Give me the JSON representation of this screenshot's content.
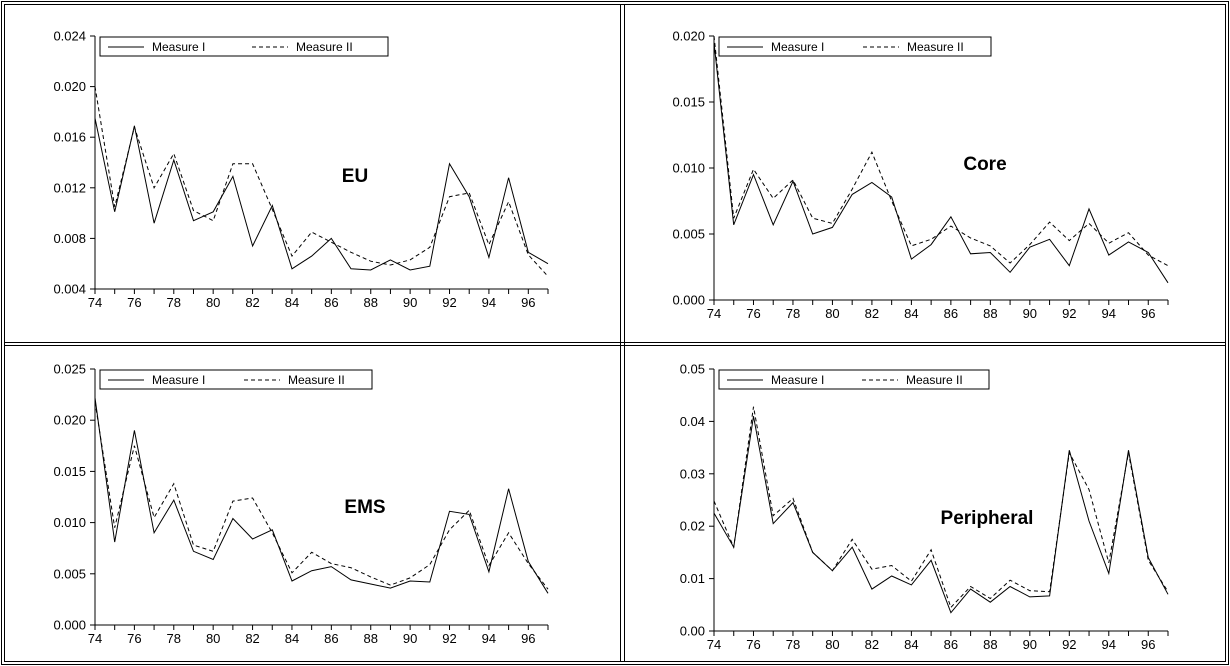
{
  "figure": {
    "colors": {
      "line": "#000000",
      "background": "#ffffff"
    }
  },
  "chart_data": [
    {
      "type": "line",
      "title": "EU",
      "x": [
        74,
        75,
        76,
        77,
        78,
        79,
        80,
        81,
        82,
        83,
        84,
        85,
        86,
        87,
        88,
        89,
        90,
        91,
        92,
        93,
        94,
        95,
        96,
        97
      ],
      "x_ticks": [
        "74",
        "76",
        "78",
        "80",
        "82",
        "84",
        "86",
        "88",
        "90",
        "92",
        "94",
        "96"
      ],
      "ylim": [
        0.004,
        0.024
      ],
      "y_ticks": [
        "0.004",
        "0.008",
        "0.012",
        "0.016",
        "0.020",
        "0.024"
      ],
      "legend": "top-left",
      "grid": false,
      "series": [
        {
          "name": "Measure I",
          "style": "solid",
          "values": [
            0.0175,
            0.0101,
            0.0169,
            0.0092,
            0.0142,
            0.0094,
            0.0101,
            0.0129,
            0.0074,
            0.0106,
            0.0056,
            0.0066,
            0.008,
            0.0056,
            0.0055,
            0.0063,
            0.0055,
            0.0058,
            0.0139,
            0.0113,
            0.0065,
            0.0128,
            0.0069,
            0.006
          ]
        },
        {
          "name": "Measure II",
          "style": "dashed",
          "values": [
            0.02,
            0.0105,
            0.0168,
            0.012,
            0.0147,
            0.0102,
            0.0094,
            0.0139,
            0.0139,
            0.0103,
            0.0066,
            0.0085,
            0.0077,
            0.0069,
            0.0062,
            0.0059,
            0.0063,
            0.0073,
            0.0113,
            0.0116,
            0.0075,
            0.0109,
            0.0067,
            0.005
          ]
        }
      ]
    },
    {
      "type": "line",
      "title": "Core",
      "x": [
        74,
        75,
        76,
        77,
        78,
        79,
        80,
        81,
        82,
        83,
        84,
        85,
        86,
        87,
        88,
        89,
        90,
        91,
        92,
        93,
        94,
        95,
        96,
        97
      ],
      "x_ticks": [
        "74",
        "76",
        "78",
        "80",
        "82",
        "84",
        "86",
        "88",
        "90",
        "92",
        "94",
        "96"
      ],
      "ylim": [
        0.0,
        0.02
      ],
      "y_ticks": [
        "0.000",
        "0.005",
        "0.010",
        "0.015",
        "0.020"
      ],
      "legend": "top-left",
      "grid": false,
      "series": [
        {
          "name": "Measure I",
          "style": "solid",
          "values": [
            0.0195,
            0.0057,
            0.0095,
            0.0057,
            0.009,
            0.005,
            0.0055,
            0.008,
            0.0089,
            0.0078,
            0.0031,
            0.0042,
            0.0063,
            0.0035,
            0.0036,
            0.0021,
            0.004,
            0.0046,
            0.0026,
            0.0069,
            0.0034,
            0.0044,
            0.0036,
            0.0013
          ]
        },
        {
          "name": "Measure II",
          "style": "dashed",
          "values": [
            0.02,
            0.0062,
            0.0099,
            0.0077,
            0.0091,
            0.0062,
            0.0058,
            0.0084,
            0.0112,
            0.0075,
            0.0041,
            0.0046,
            0.0056,
            0.0047,
            0.0041,
            0.0028,
            0.0042,
            0.0059,
            0.0045,
            0.0058,
            0.0043,
            0.0051,
            0.0034,
            0.0026
          ]
        }
      ]
    },
    {
      "type": "line",
      "title": "EMS",
      "x": [
        74,
        75,
        76,
        77,
        78,
        79,
        80,
        81,
        82,
        83,
        84,
        85,
        86,
        87,
        88,
        89,
        90,
        91,
        92,
        93,
        94,
        95,
        96,
        97
      ],
      "x_ticks": [
        "74",
        "76",
        "78",
        "80",
        "82",
        "84",
        "86",
        "88",
        "90",
        "92",
        "94",
        "96"
      ],
      "ylim": [
        0.0,
        0.025
      ],
      "y_ticks": [
        "0.000",
        "0.005",
        "0.010",
        "0.015",
        "0.020",
        "0.025"
      ],
      "legend": "top-left",
      "grid": false,
      "series": [
        {
          "name": "Measure I",
          "style": "solid",
          "values": [
            0.0222,
            0.0081,
            0.019,
            0.009,
            0.0122,
            0.0072,
            0.0064,
            0.0104,
            0.0084,
            0.0093,
            0.0043,
            0.0053,
            0.0057,
            0.0044,
            0.004,
            0.0036,
            0.0043,
            0.0042,
            0.0111,
            0.0108,
            0.0052,
            0.0133,
            0.0062,
            0.0031
          ]
        },
        {
          "name": "Measure II",
          "style": "dashed",
          "values": [
            0.0218,
            0.0095,
            0.0175,
            0.0105,
            0.0138,
            0.0078,
            0.0072,
            0.0121,
            0.0124,
            0.009,
            0.0051,
            0.0071,
            0.006,
            0.0056,
            0.0047,
            0.0039,
            0.0046,
            0.0059,
            0.0093,
            0.0112,
            0.0058,
            0.009,
            0.006,
            0.0035
          ]
        }
      ]
    },
    {
      "type": "line",
      "title": "Peripheral",
      "x": [
        74,
        75,
        76,
        77,
        78,
        79,
        80,
        81,
        82,
        83,
        84,
        85,
        86,
        87,
        88,
        89,
        90,
        91,
        92,
        93,
        94,
        95,
        96,
        97
      ],
      "x_ticks": [
        "74",
        "76",
        "78",
        "80",
        "82",
        "84",
        "86",
        "88",
        "90",
        "92",
        "94",
        "96"
      ],
      "ylim": [
        0.0,
        0.05
      ],
      "y_ticks": [
        "0.00",
        "0.01",
        "0.02",
        "0.03",
        "0.04",
        "0.05"
      ],
      "legend": "top-left",
      "grid": false,
      "series": [
        {
          "name": "Measure I",
          "style": "solid",
          "values": [
            0.0225,
            0.016,
            0.041,
            0.0205,
            0.0245,
            0.015,
            0.0115,
            0.016,
            0.008,
            0.0105,
            0.0088,
            0.0135,
            0.0035,
            0.008,
            0.0055,
            0.0085,
            0.0065,
            0.0067,
            0.0345,
            0.021,
            0.011,
            0.0345,
            0.014,
            0.007
          ]
        },
        {
          "name": "Measure II",
          "style": "dashed",
          "values": [
            0.0248,
            0.016,
            0.0428,
            0.022,
            0.0253,
            0.015,
            0.0115,
            0.0175,
            0.0118,
            0.0125,
            0.0095,
            0.0155,
            0.0045,
            0.0085,
            0.0062,
            0.0097,
            0.0077,
            0.0075,
            0.034,
            0.027,
            0.013,
            0.034,
            0.0135,
            0.0075
          ]
        }
      ]
    }
  ]
}
